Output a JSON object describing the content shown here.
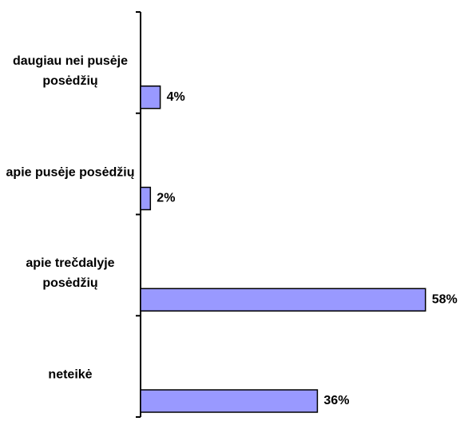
{
  "chart_data": {
    "type": "bar",
    "orientation": "horizontal",
    "categories": [
      "daugiau nei pusėje posėdžių",
      "apie pusėje posėdžių",
      "apie trečdalyje posėdžių",
      "neteikė"
    ],
    "values": [
      4,
      2,
      58,
      36
    ],
    "value_labels": [
      "4%",
      "2%",
      "58%",
      "36%"
    ],
    "color": "#9999ff"
  }
}
